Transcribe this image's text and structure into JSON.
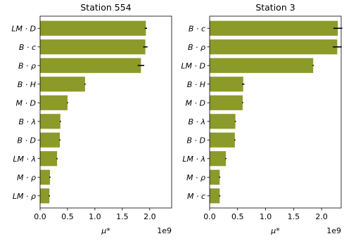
{
  "chart_data": [
    {
      "type": "bar",
      "orientation": "horizontal",
      "title": "Station 554",
      "xlabel": "μ*",
      "x_offset_label": "1e9",
      "xlim": [
        0,
        2.4
      ],
      "xticks": [
        "0.0",
        "0.5",
        "1.0",
        "1.5",
        "2.0"
      ],
      "bar_color": "#8c9a2a",
      "categories": [
        "LM · D",
        "B · c",
        "B · ρ",
        "B · H",
        "M · D",
        "B · λ",
        "B · D",
        "LM · λ",
        "M · ρ",
        "LM · ρ"
      ],
      "values": [
        1.93,
        1.92,
        1.84,
        0.82,
        0.5,
        0.37,
        0.36,
        0.31,
        0.18,
        0.17
      ],
      "errors": [
        0.02,
        0.04,
        0.06,
        0.01,
        0.01,
        0.01,
        0.01,
        0.01,
        0.01,
        0.01
      ]
    },
    {
      "type": "bar",
      "orientation": "horizontal",
      "title": "Station 3",
      "xlabel": "μ*",
      "x_offset_label": "1e9",
      "xlim": [
        0,
        2.35
      ],
      "xticks": [
        "0.0",
        "0.5",
        "1.0",
        "1.5",
        "2.0"
      ],
      "bar_color": "#8c9a2a",
      "categories": [
        "B · c",
        "B · ρ",
        "LM · D",
        "B · H",
        "M · D",
        "B · λ",
        "B · D",
        "LM · λ",
        "M · ρ",
        "M · c"
      ],
      "values": [
        2.29,
        2.28,
        1.85,
        0.6,
        0.59,
        0.46,
        0.45,
        0.29,
        0.18,
        0.18
      ],
      "errors": [
        0.08,
        0.08,
        0.01,
        0.02,
        0.01,
        0.01,
        0.01,
        0.01,
        0.01,
        0.01
      ]
    }
  ]
}
